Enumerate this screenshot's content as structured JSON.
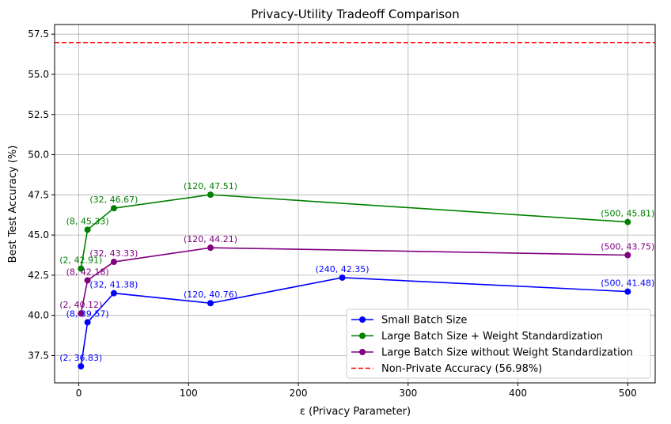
{
  "chart_data": {
    "type": "line",
    "title": "Privacy-Utility Tradeoff Comparison",
    "xlabel": "ε (Privacy Parameter)",
    "ylabel": "Best Test Accuracy (%)",
    "xlim": [
      -22,
      525
    ],
    "ylim": [
      35.8,
      58.1
    ],
    "xticks": [
      0,
      100,
      200,
      300,
      400,
      500
    ],
    "yticks": [
      37.5,
      40.0,
      42.5,
      45.0,
      47.5,
      50.0,
      52.5,
      55.0,
      57.5
    ],
    "grid": true,
    "legend_position": "lower right",
    "series": [
      {
        "name": "Small Batch Size",
        "color": "#0000ff",
        "points": [
          [
            2,
            36.83
          ],
          [
            8,
            39.57
          ],
          [
            32,
            41.38
          ],
          [
            120,
            40.76
          ],
          [
            240,
            42.35
          ],
          [
            500,
            41.48
          ]
        ],
        "labels": [
          "(2, 36.83)",
          "(8, 39.57)",
          "(32, 41.38)",
          "(120, 40.76)",
          "(240, 42.35)",
          "(500, 41.48)"
        ]
      },
      {
        "name": "Large Batch Size + Weight Standardization",
        "color": "#008000",
        "points": [
          [
            2,
            42.91
          ],
          [
            8,
            45.33
          ],
          [
            32,
            46.67
          ],
          [
            120,
            47.51
          ],
          [
            500,
            45.81
          ]
        ],
        "labels": [
          "(2, 42.91)",
          "(8, 45.33)",
          "(32, 46.67)",
          "(120, 47.51)",
          "(500, 45.81)"
        ]
      },
      {
        "name": "Large Batch Size without Weight Standardization",
        "color": "#800080",
        "points": [
          [
            2,
            40.12
          ],
          [
            8,
            42.18
          ],
          [
            32,
            43.33
          ],
          [
            120,
            44.21
          ],
          [
            500,
            43.75
          ]
        ],
        "labels": [
          "(2, 40.12)",
          "(8, 42.18)",
          "(32, 43.33)",
          "(120, 44.21)",
          "(500, 43.75)"
        ]
      }
    ],
    "reference_lines": [
      {
        "name": "Non-Private Accuracy (56.98%)",
        "y": 56.98,
        "color": "#ff0000",
        "style": "dashed"
      }
    ]
  }
}
